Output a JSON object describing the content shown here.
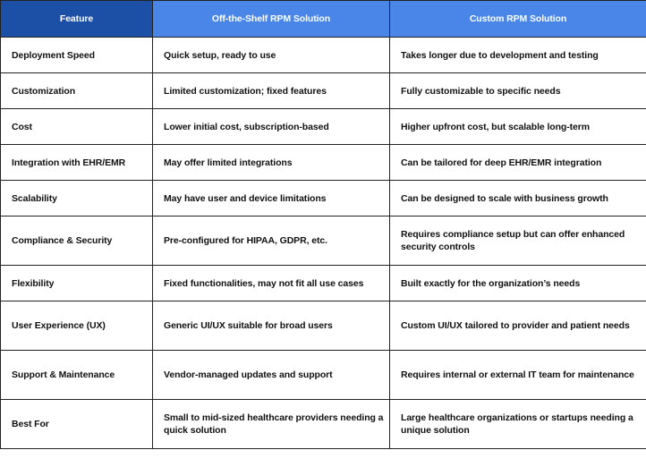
{
  "header": {
    "columns": [
      "Feature",
      "Off-the-Shelf RPM Solution",
      "Custom RPM Solution"
    ]
  },
  "table": {
    "rows": [
      [
        "Deployment Speed",
        "Quick setup, ready to use",
        "Takes longer due to development and testing"
      ],
      [
        "Customization",
        "Limited customization; fixed features",
        "Fully customizable to specific needs"
      ],
      [
        "Cost",
        "Lower initial cost, subscription-based",
        "Higher upfront cost, but scalable long-term"
      ],
      [
        "Integration with EHR/EMR",
        "May offer limited integrations",
        "Can be tailored for deep EHR/EMR integration"
      ],
      [
        "Scalability",
        "May have user and device limitations",
        "Can be designed to scale with business growth"
      ],
      [
        "Compliance & Security",
        "Pre-configured for HIPAA, GDPR, etc.",
        "Requires compliance setup but can offer enhanced security controls"
      ],
      [
        "Flexibility",
        "Fixed functionalities, may not fit all use cases",
        "Built exactly for the organization’s needs"
      ],
      [
        "User Experience (UX)",
        "Generic UI/UX suitable for broad users",
        "Custom UI/UX tailored to provider and patient needs"
      ],
      [
        "Support & Maintenance",
        "Vendor-managed updates and support",
        "Requires internal or external IT team for maintenance"
      ],
      [
        "Best For",
        "Small to mid-sized healthcare providers needing a quick solution",
        "Large healthcare organizations or startups needing a unique solution"
      ]
    ]
  }
}
